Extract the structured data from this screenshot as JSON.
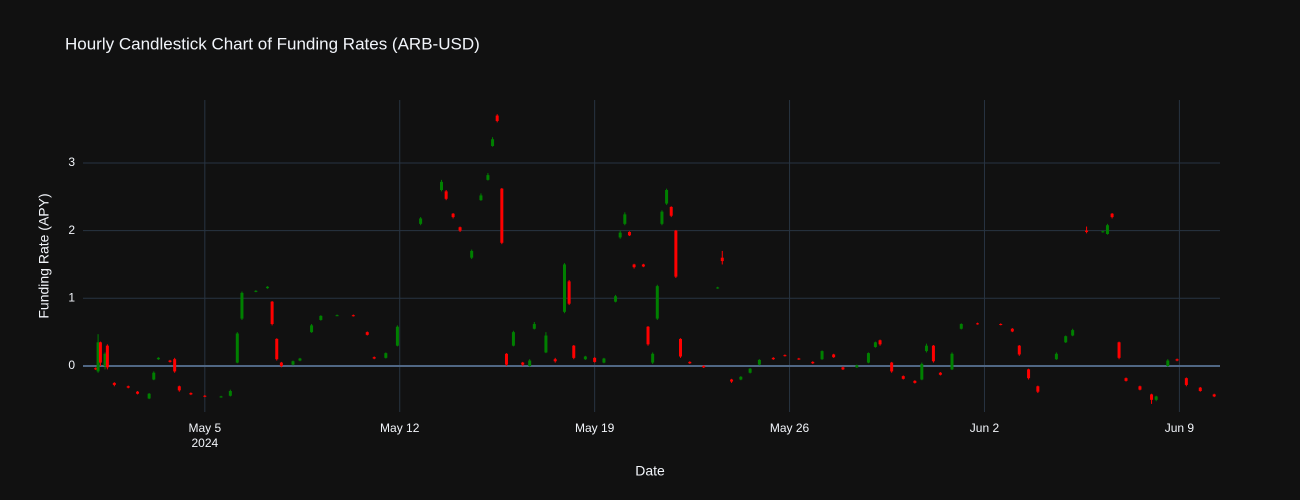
{
  "chart_data": {
    "type": "candlestick",
    "title": "Hourly Candlestick Chart of Funding Rates (ARB-USD)",
    "x_label": "Date",
    "y_label": "Funding Rate (APY)",
    "increasing_color": "#008000",
    "decreasing_color": "#ff0000",
    "xlim": [
      "2024-04-30 15:00",
      "2024-06-10 11:00"
    ],
    "xticks": [
      {
        "value": "2024-05-05",
        "label": "May 5"
      },
      {
        "value": "2024-05-12",
        "label": "May 12"
      },
      {
        "value": "2024-05-19",
        "label": "May 19"
      },
      {
        "value": "2024-05-26",
        "label": "May 26"
      },
      {
        "value": "2024-06-02",
        "label": "Jun 2"
      },
      {
        "value": "2024-06-09",
        "label": "Jun 9"
      }
    ],
    "x_year_label": "2024",
    "ylim": [
      -0.68,
      3.93
    ],
    "yticks": [
      0,
      1,
      2,
      3
    ],
    "grid": true,
    "x": [
      "2024-05-01 02:00",
      "2024-05-01 04:00",
      "2024-05-01 06:00",
      "2024-05-01 10:00",
      "2024-05-01 12:00",
      "2024-05-01 18:00",
      "2024-05-02 06:00",
      "2024-05-02 14:00",
      "2024-05-03 00:00",
      "2024-05-03 04:00",
      "2024-05-03 08:00",
      "2024-05-03 18:00",
      "2024-05-03 22:00",
      "2024-05-04 02:00",
      "2024-05-04 12:00",
      "2024-05-05 00:00",
      "2024-05-05 14:00",
      "2024-05-05 22:00",
      "2024-05-06 04:00",
      "2024-05-06 08:00",
      "2024-05-06 20:00",
      "2024-05-07 06:00",
      "2024-05-07 10:00",
      "2024-05-07 14:00",
      "2024-05-07 18:00",
      "2024-05-08 04:00",
      "2024-05-08 10:00",
      "2024-05-08 20:00",
      "2024-05-09 04:00",
      "2024-05-09 18:00",
      "2024-05-10 08:00",
      "2024-05-10 20:00",
      "2024-05-11 02:00",
      "2024-05-11 12:00",
      "2024-05-11 22:00",
      "2024-05-12 18:00",
      "2024-05-13 12:00",
      "2024-05-13 16:00",
      "2024-05-13 22:00",
      "2024-05-14 04:00",
      "2024-05-14 14:00",
      "2024-05-14 22:00",
      "2024-05-15 04:00",
      "2024-05-15 08:00",
      "2024-05-15 12:00",
      "2024-05-15 16:00",
      "2024-05-15 20:00",
      "2024-05-16 02:00",
      "2024-05-16 10:00",
      "2024-05-16 16:00",
      "2024-05-16 20:00",
      "2024-05-17 06:00",
      "2024-05-17 14:00",
      "2024-05-17 22:00",
      "2024-05-18 02:00",
      "2024-05-18 06:00",
      "2024-05-18 16:00",
      "2024-05-19 00:00",
      "2024-05-19 08:00",
      "2024-05-19 18:00",
      "2024-05-19 22:00",
      "2024-05-20 02:00",
      "2024-05-20 06:00",
      "2024-05-20 10:00",
      "2024-05-20 18:00",
      "2024-05-20 22:00",
      "2024-05-21 02:00",
      "2024-05-21 06:00",
      "2024-05-21 10:00",
      "2024-05-21 14:00",
      "2024-05-21 18:00",
      "2024-05-21 22:00",
      "2024-05-22 02:00",
      "2024-05-22 10:00",
      "2024-05-22 22:00",
      "2024-05-23 10:00",
      "2024-05-23 14:00",
      "2024-05-23 22:00",
      "2024-05-24 06:00",
      "2024-05-24 14:00",
      "2024-05-24 22:00",
      "2024-05-25 10:00",
      "2024-05-25 20:00",
      "2024-05-26 08:00",
      "2024-05-26 20:00",
      "2024-05-27 04:00",
      "2024-05-27 14:00",
      "2024-05-27 22:00",
      "2024-05-28 10:00",
      "2024-05-28 20:00",
      "2024-05-29 02:00",
      "2024-05-29 06:00",
      "2024-05-29 16:00",
      "2024-05-30 02:00",
      "2024-05-30 12:00",
      "2024-05-30 18:00",
      "2024-05-30 22:00",
      "2024-05-31 04:00",
      "2024-05-31 10:00",
      "2024-05-31 20:00",
      "2024-06-01 04:00",
      "2024-06-01 18:00",
      "2024-06-02 14:00",
      "2024-06-03 00:00",
      "2024-06-03 06:00",
      "2024-06-03 14:00",
      "2024-06-03 22:00",
      "2024-06-04 14:00",
      "2024-06-04 22:00",
      "2024-06-05 04:00",
      "2024-06-05 16:00",
      "2024-06-06 06:00",
      "2024-06-06 10:00",
      "2024-06-06 14:00",
      "2024-06-06 20:00",
      "2024-06-07 02:00",
      "2024-06-07 14:00",
      "2024-06-08 00:00",
      "2024-06-08 04:00",
      "2024-06-08 14:00",
      "2024-06-08 22:00",
      "2024-06-09 06:00",
      "2024-06-09 18:00",
      "2024-06-10 06:00"
    ],
    "open": [
      -0.03,
      -0.08,
      0.35,
      0.0,
      0.3,
      -0.25,
      -0.3,
      -0.38,
      -0.48,
      -0.2,
      0.1,
      0.08,
      0.1,
      -0.3,
      -0.4,
      -0.44,
      -0.46,
      -0.44,
      0.05,
      0.7,
      1.1,
      1.15,
      0.95,
      0.4,
      0.05,
      0.02,
      0.08,
      0.5,
      0.68,
      0.75,
      0.75,
      0.5,
      0.13,
      0.12,
      0.3,
      2.1,
      2.6,
      2.58,
      2.25,
      2.05,
      1.6,
      2.45,
      2.75,
      3.25,
      3.7,
      2.62,
      0.18,
      0.3,
      0.05,
      0.0,
      0.55,
      0.2,
      0.1,
      0.8,
      1.25,
      0.3,
      0.1,
      0.12,
      0.05,
      0.95,
      1.9,
      2.1,
      1.98,
      1.5,
      1.5,
      0.58,
      0.05,
      0.7,
      2.1,
      2.4,
      2.35,
      2.0,
      0.4,
      0.06,
      0.0,
      1.15,
      1.6,
      -0.2,
      -0.2,
      -0.1,
      0.02,
      0.12,
      0.16,
      0.11,
      0.06,
      0.1,
      0.17,
      -0.02,
      -0.02,
      0.05,
      0.28,
      0.38,
      0.05,
      -0.15,
      -0.22,
      -0.2,
      0.22,
      0.3,
      -0.1,
      -0.05,
      0.55,
      0.63,
      0.62,
      0.55,
      0.3,
      -0.05,
      -0.3,
      0.1,
      0.35,
      0.45,
      2.0,
      1.98,
      1.95,
      2.25,
      0.35,
      -0.18,
      -0.3,
      -0.42,
      -0.5,
      0.0,
      0.1,
      -0.18,
      -0.32,
      -0.42
    ],
    "high": [
      -0.02,
      0.47,
      0.36,
      0.2,
      0.32,
      -0.24,
      -0.29,
      -0.37,
      -0.4,
      -0.08,
      0.13,
      0.09,
      0.12,
      -0.29,
      -0.39,
      -0.43,
      -0.44,
      -0.35,
      0.5,
      1.1,
      1.12,
      1.18,
      0.96,
      0.41,
      0.06,
      0.08,
      0.12,
      0.62,
      0.75,
      0.76,
      0.76,
      0.51,
      0.14,
      0.2,
      0.6,
      2.2,
      2.75,
      2.6,
      2.26,
      2.06,
      1.72,
      2.55,
      2.85,
      3.38,
      3.72,
      2.63,
      0.19,
      0.52,
      0.06,
      0.1,
      0.65,
      0.5,
      0.12,
      1.52,
      1.27,
      0.31,
      0.15,
      0.13,
      0.12,
      1.05,
      2.0,
      2.27,
      1.99,
      1.51,
      1.51,
      0.59,
      0.2,
      1.2,
      2.3,
      2.62,
      2.36,
      2.01,
      0.41,
      0.07,
      0.01,
      1.17,
      1.7,
      -0.19,
      -0.15,
      -0.03,
      0.1,
      0.13,
      0.17,
      0.12,
      0.07,
      0.23,
      0.18,
      -0.01,
      0.02,
      0.2,
      0.36,
      0.39,
      0.06,
      -0.14,
      -0.21,
      0.05,
      0.33,
      0.31,
      -0.09,
      0.2,
      0.63,
      0.64,
      0.63,
      0.56,
      0.31,
      -0.04,
      -0.29,
      0.2,
      0.45,
      0.55,
      2.06,
      2.0,
      2.1,
      2.26,
      0.36,
      -0.17,
      -0.29,
      -0.41,
      -0.44,
      0.1,
      0.11,
      -0.17,
      -0.31,
      -0.41
    ],
    "low": [
      -0.06,
      -0.1,
      0.0,
      -0.05,
      -0.05,
      -0.3,
      -0.33,
      -0.42,
      -0.49,
      -0.21,
      0.09,
      0.05,
      -0.1,
      -0.38,
      -0.43,
      -0.46,
      -0.47,
      -0.45,
      0.04,
      0.68,
      1.09,
      1.14,
      0.6,
      0.08,
      -0.02,
      0.01,
      0.07,
      0.49,
      0.67,
      0.74,
      0.73,
      0.45,
      0.1,
      0.11,
      0.29,
      2.08,
      2.58,
      2.45,
      2.18,
      1.98,
      1.58,
      2.44,
      2.74,
      3.24,
      3.6,
      1.8,
      0.0,
      0.29,
      0.0,
      -0.01,
      0.54,
      0.19,
      0.05,
      0.78,
      0.9,
      0.1,
      0.09,
      0.05,
      0.04,
      0.94,
      1.88,
      2.08,
      1.92,
      1.44,
      1.46,
      0.3,
      0.03,
      0.68,
      2.08,
      2.38,
      2.2,
      1.3,
      0.12,
      0.03,
      -0.03,
      1.14,
      1.5,
      -0.25,
      -0.21,
      -0.11,
      0.01,
      0.09,
      0.14,
      0.09,
      0.03,
      0.09,
      0.12,
      -0.06,
      -0.03,
      0.04,
      0.27,
      0.3,
      -0.1,
      -0.2,
      -0.26,
      -0.21,
      0.2,
      0.05,
      -0.14,
      -0.06,
      0.54,
      0.61,
      0.6,
      0.5,
      0.15,
      -0.2,
      -0.4,
      0.09,
      0.34,
      0.44,
      1.96,
      1.97,
      1.94,
      2.18,
      0.1,
      -0.23,
      -0.36,
      -0.56,
      -0.52,
      -0.01,
      0.07,
      -0.3,
      -0.38,
      -0.46
    ],
    "close": [
      -0.05,
      0.35,
      0.05,
      0.18,
      -0.02,
      -0.28,
      -0.32,
      -0.41,
      -0.41,
      -0.1,
      0.12,
      0.06,
      -0.08,
      -0.36,
      -0.42,
      -0.45,
      -0.45,
      -0.37,
      0.48,
      1.08,
      1.11,
      1.17,
      0.62,
      0.1,
      0.0,
      0.07,
      0.11,
      0.6,
      0.74,
      0.75,
      0.74,
      0.46,
      0.11,
      0.19,
      0.58,
      2.18,
      2.72,
      2.47,
      2.2,
      2.0,
      1.7,
      2.52,
      2.82,
      3.35,
      3.62,
      1.82,
      0.02,
      0.5,
      0.02,
      0.08,
      0.62,
      0.45,
      0.07,
      1.5,
      0.92,
      0.12,
      0.14,
      0.06,
      0.11,
      1.03,
      1.97,
      2.24,
      1.93,
      1.46,
      1.47,
      0.32,
      0.18,
      1.18,
      2.28,
      2.6,
      2.22,
      1.32,
      0.14,
      0.04,
      -0.02,
      1.16,
      1.55,
      -0.23,
      -0.16,
      -0.04,
      0.09,
      0.1,
      0.15,
      0.1,
      0.04,
      0.22,
      0.13,
      -0.05,
      0.01,
      0.19,
      0.35,
      0.32,
      -0.08,
      -0.19,
      -0.25,
      0.03,
      0.3,
      0.07,
      -0.13,
      0.18,
      0.62,
      0.62,
      0.61,
      0.51,
      0.17,
      -0.18,
      -0.38,
      0.18,
      0.44,
      0.53,
      1.98,
      1.99,
      2.08,
      2.2,
      0.12,
      -0.22,
      -0.35,
      -0.5,
      -0.45,
      0.08,
      0.08,
      -0.28,
      -0.37,
      -0.45
    ]
  }
}
